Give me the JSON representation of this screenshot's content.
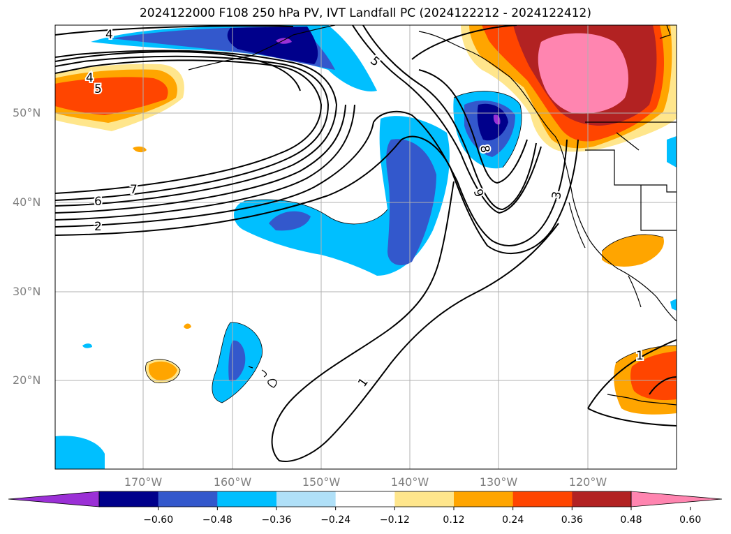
{
  "title": "2024122000 F108 250 hPa PV, IVT Landfall PC (2024122212 - 2024122412)",
  "lat_ticks": [
    "50°N",
    "40°N",
    "30°N",
    "20°N"
  ],
  "lon_ticks": [
    "170°W",
    "160°W",
    "150°W",
    "140°W",
    "130°W",
    "120°W"
  ],
  "colorbar": {
    "colors": [
      "#9b30d6",
      "#00008b",
      "#3358cc",
      "#00bfff",
      "#b0e0f8",
      "#ffffff",
      "#ffe68c",
      "#ffa500",
      "#ff4500",
      "#b22222",
      "#ff85b0"
    ],
    "tick_labels": [
      "−0.60",
      "−0.48",
      "−0.36",
      "−0.24",
      "−0.12",
      "0.12",
      "0.24",
      "0.36",
      "0.48",
      "0.60"
    ]
  },
  "contour_labels": [
    "4",
    "4",
    "5",
    "5",
    "7",
    "6",
    "2",
    "8",
    "9",
    "3",
    "1",
    "1"
  ]
}
